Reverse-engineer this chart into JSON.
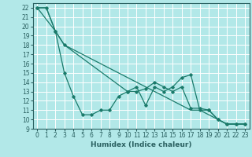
{
  "xlabel": "Humidex (Indice chaleur)",
  "bg_color": "#b2e8e8",
  "grid_color": "#ffffff",
  "line_color": "#1a7a6a",
  "xlim": [
    -0.5,
    23.5
  ],
  "ylim": [
    9,
    22.5
  ],
  "yticks": [
    9,
    10,
    11,
    12,
    13,
    14,
    15,
    16,
    17,
    18,
    19,
    20,
    21,
    22
  ],
  "xticks": [
    0,
    1,
    2,
    3,
    4,
    5,
    6,
    7,
    8,
    9,
    10,
    11,
    12,
    13,
    14,
    15,
    16,
    17,
    18,
    19,
    20,
    21,
    22,
    23
  ],
  "line1_x": [
    0,
    1,
    2,
    3,
    4,
    5,
    6,
    7,
    8,
    9,
    10,
    11,
    12,
    13,
    14,
    15,
    16,
    17,
    18,
    19,
    20,
    21,
    22,
    23
  ],
  "line1_y": [
    22,
    22,
    19.5,
    15,
    12.5,
    10.5,
    10.5,
    11,
    11,
    12.5,
    13,
    13.5,
    11.5,
    13.5,
    13,
    13.5,
    14.5,
    14.8,
    11,
    11,
    10,
    9.5,
    9.5,
    9.5
  ],
  "line2_x": [
    0,
    1,
    2,
    3,
    4,
    5,
    6,
    7,
    8,
    9,
    10,
    11,
    12,
    13,
    14,
    15,
    16,
    17,
    18,
    19,
    20,
    21,
    22,
    23
  ],
  "line2_y": [
    22,
    22,
    19.5,
    18,
    17.5,
    17,
    16.5,
    16,
    15.5,
    15,
    14.5,
    14,
    13.5,
    13,
    12.5,
    12,
    11.5,
    11,
    11,
    10.5,
    10,
    9.5,
    9.5,
    9.5
  ],
  "line3_x": [
    0,
    2,
    3,
    10,
    11,
    12,
    13,
    14,
    15,
    16,
    17,
    18,
    19,
    20,
    21,
    22,
    23
  ],
  "line3_y": [
    22,
    19.5,
    18,
    13,
    13,
    13.3,
    14,
    13.5,
    13,
    13.5,
    11.2,
    11.2,
    11,
    10,
    9.5,
    9.5,
    9.5
  ],
  "tick_fontsize": 5.5,
  "xlabel_fontsize": 6.5,
  "tick_color": "#2a6060",
  "spine_color": "#2a6060"
}
